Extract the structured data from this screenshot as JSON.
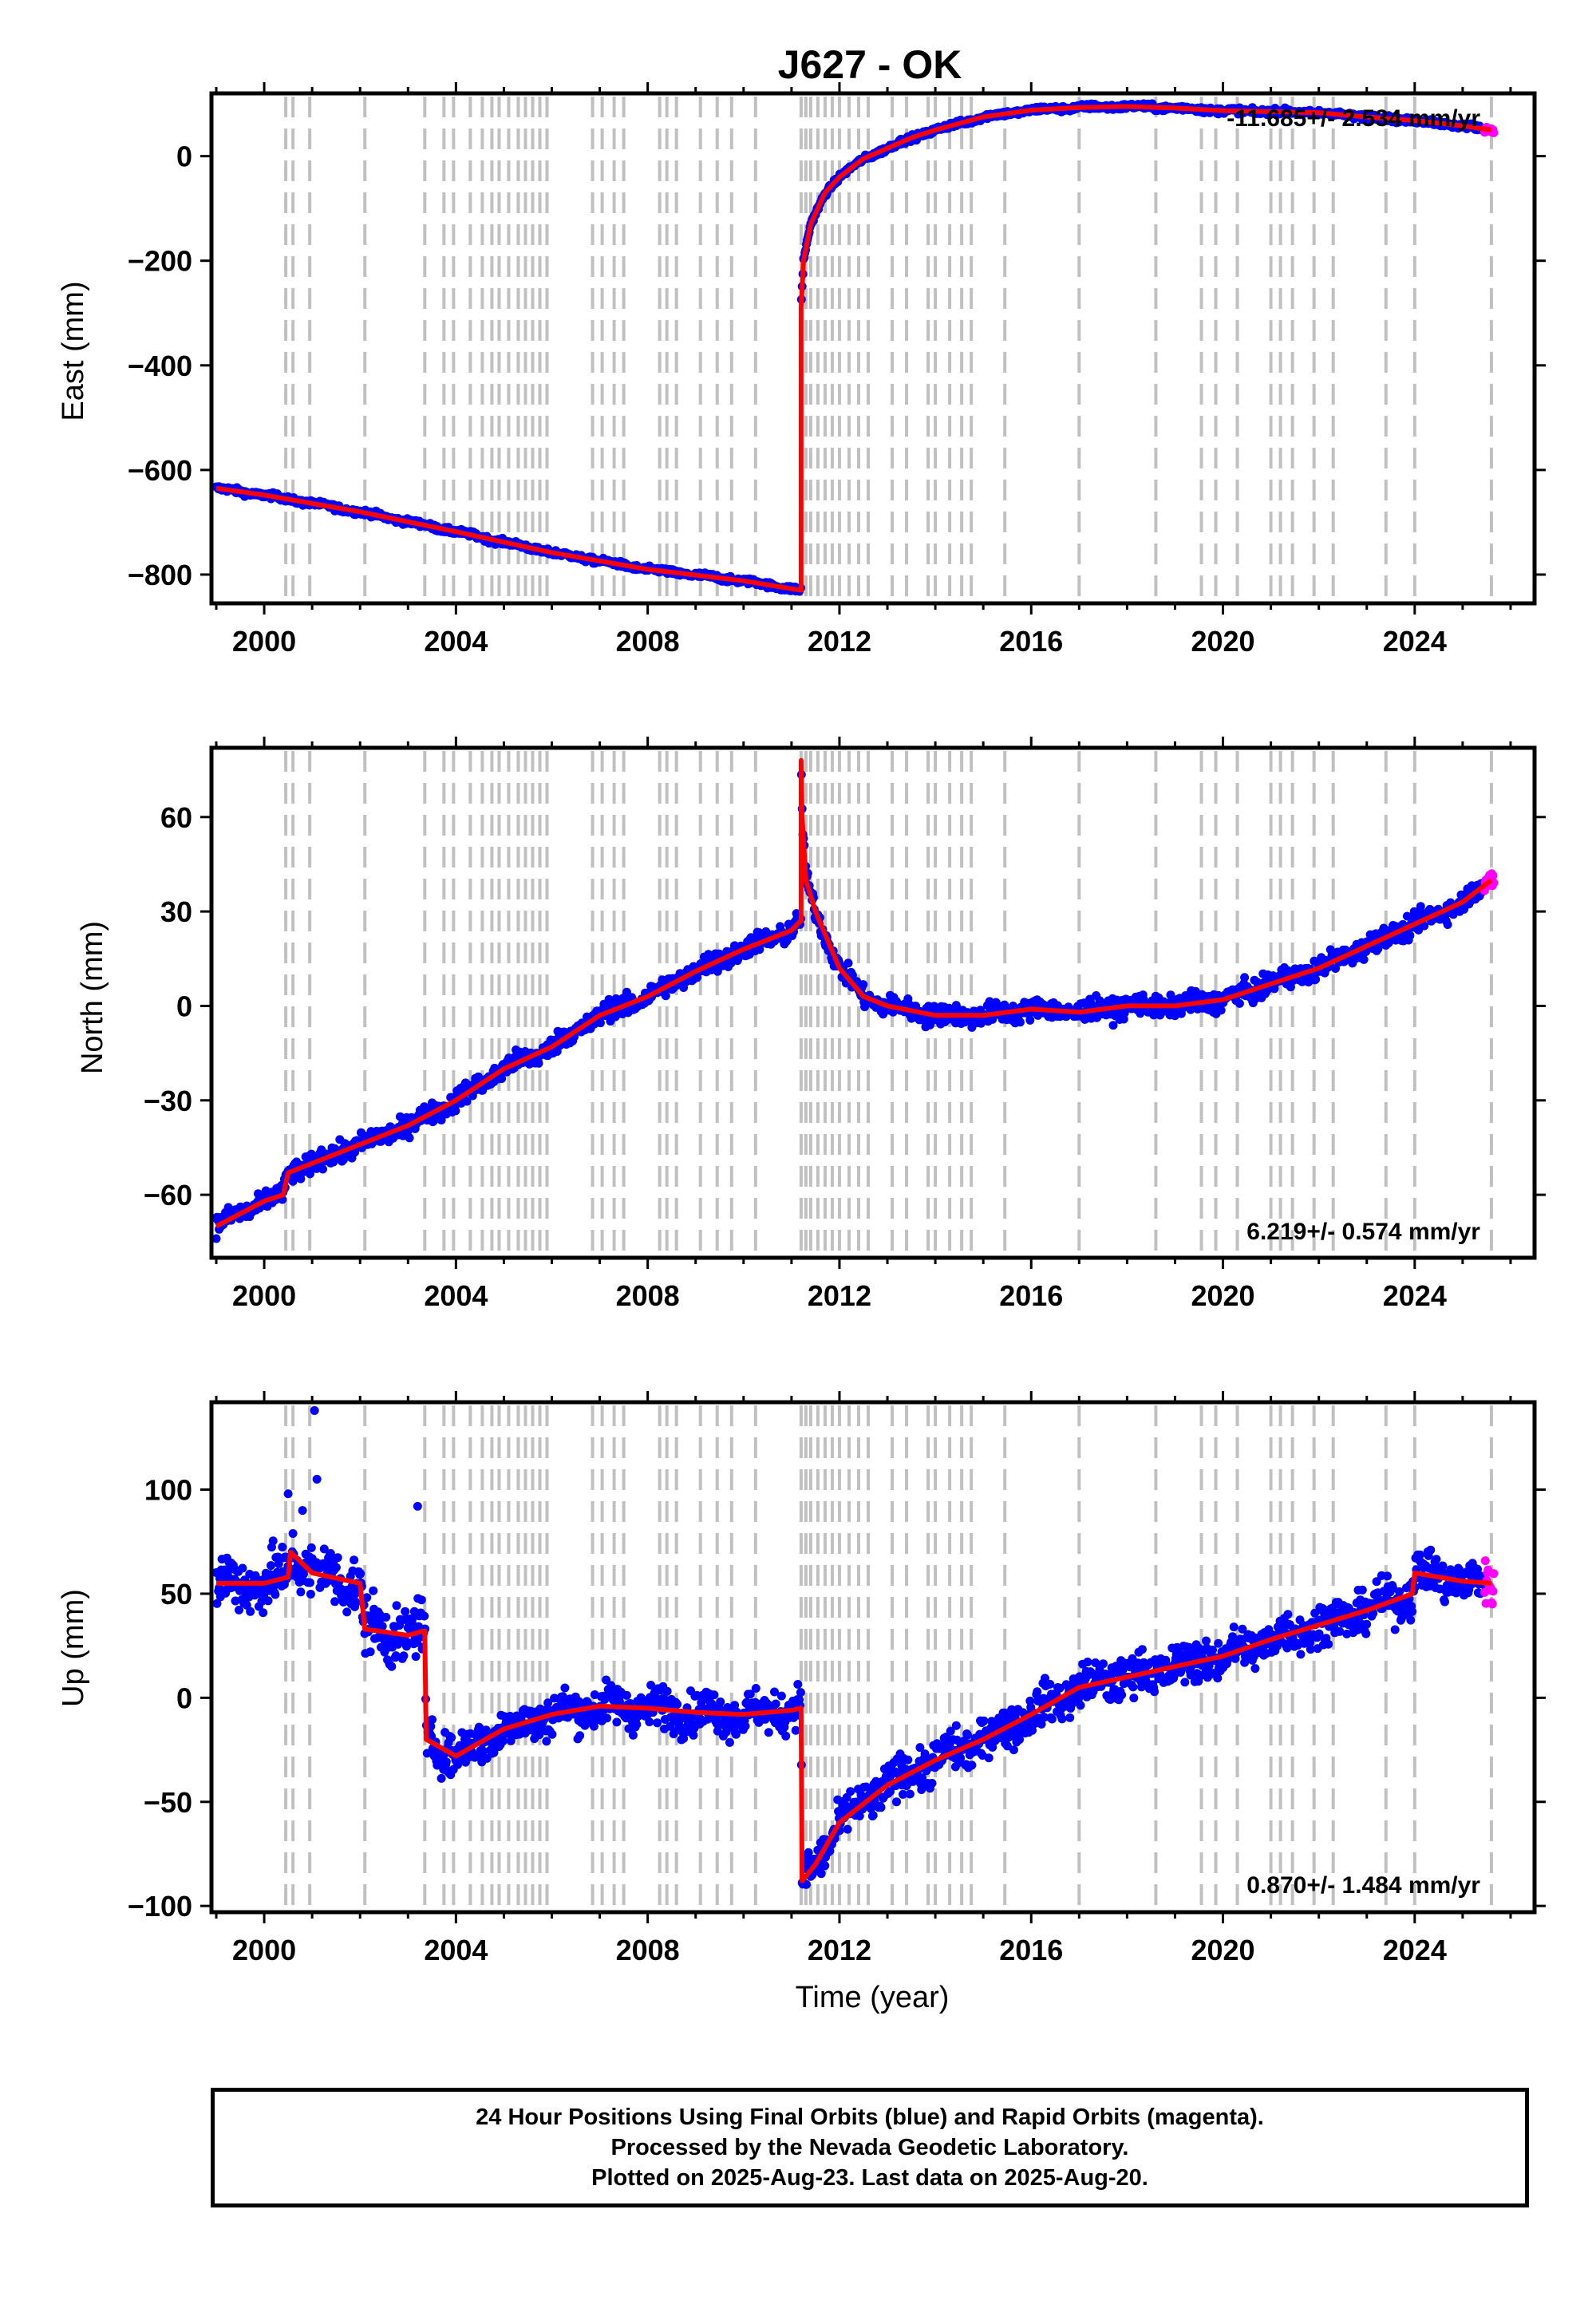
{
  "chart_data": [
    {
      "type": "scatter",
      "title": "J627 - OK",
      "ylabel": "East (mm)",
      "xlim": [
        1998.9,
        2026.5
      ],
      "ylim": [
        -855,
        120
      ],
      "xticks": [
        2000,
        2004,
        2008,
        2012,
        2016,
        2020,
        2024
      ],
      "yticks": [
        -800,
        -600,
        -400,
        -200,
        0
      ],
      "tick_labels": {
        "x": [
          "2000",
          "2004",
          "2008",
          "2012",
          "2016",
          "2020",
          "2024"
        ],
        "y": [
          "−800",
          "−600",
          "−400",
          "−200",
          "0"
        ]
      },
      "rate_label": "-11.685+/- 2.534 mm/yr",
      "trend": [
        [
          1999.0,
          -635
        ],
        [
          2000.0,
          -648
        ],
        [
          2002.0,
          -680
        ],
        [
          2004.0,
          -718
        ],
        [
          2006.0,
          -758
        ],
        [
          2008.0,
          -790
        ],
        [
          2010.0,
          -812
        ],
        [
          2011.19,
          -830
        ],
        [
          2011.2,
          -830
        ],
        [
          2011.2,
          -290
        ],
        [
          2011.25,
          -200
        ],
        [
          2011.4,
          -130
        ],
        [
          2011.7,
          -70
        ],
        [
          2012.0,
          -40
        ],
        [
          2012.5,
          -5
        ],
        [
          2013.0,
          15
        ],
        [
          2013.5,
          35
        ],
        [
          2014.0,
          50
        ],
        [
          2015.0,
          75
        ],
        [
          2016.0,
          88
        ],
        [
          2017.0,
          93
        ],
        [
          2018.0,
          95
        ],
        [
          2019.0,
          92
        ],
        [
          2020.0,
          87
        ],
        [
          2021.0,
          85
        ],
        [
          2022.0,
          83
        ],
        [
          2023.0,
          75
        ],
        [
          2024.0,
          68
        ],
        [
          2025.0,
          58
        ],
        [
          2025.6,
          50
        ]
      ],
      "noise": 4,
      "rapid_range": [
        2025.45,
        2025.65
      ],
      "steps": []
    },
    {
      "type": "scatter",
      "title": "",
      "ylabel": "North (mm)",
      "xlim": [
        1998.9,
        2026.5
      ],
      "ylim": [
        -80,
        82
      ],
      "xticks": [
        2000,
        2004,
        2008,
        2012,
        2016,
        2020,
        2024
      ],
      "yticks": [
        -60,
        -30,
        0,
        30,
        60
      ],
      "tick_labels": {
        "x": [
          "2000",
          "2004",
          "2008",
          "2012",
          "2016",
          "2020",
          "2024"
        ],
        "y": [
          "−60",
          "−30",
          "0",
          "30",
          "60"
        ]
      },
      "rate_label": "6.219+/- 0.574 mm/yr",
      "trend": [
        [
          1999.0,
          -70
        ],
        [
          1999.5,
          -66
        ],
        [
          2000.0,
          -62
        ],
        [
          2000.4,
          -60
        ],
        [
          2000.5,
          -53
        ],
        [
          2001.0,
          -50
        ],
        [
          2002.0,
          -44
        ],
        [
          2003.0,
          -38
        ],
        [
          2004.0,
          -30
        ],
        [
          2005.0,
          -20
        ],
        [
          2006.0,
          -13
        ],
        [
          2007.0,
          -3
        ],
        [
          2008.0,
          3
        ],
        [
          2009.0,
          11
        ],
        [
          2010.0,
          18
        ],
        [
          2011.0,
          24
        ],
        [
          2011.19,
          27
        ],
        [
          2011.2,
          27
        ],
        [
          2011.2,
          78
        ],
        [
          2011.22,
          60
        ],
        [
          2011.3,
          40
        ],
        [
          2011.5,
          30
        ],
        [
          2012.0,
          12
        ],
        [
          2012.5,
          3
        ],
        [
          2013.0,
          0
        ],
        [
          2014.0,
          -3
        ],
        [
          2015.0,
          -3
        ],
        [
          2016.0,
          -1
        ],
        [
          2017.0,
          -2
        ],
        [
          2018.0,
          0
        ],
        [
          2019.0,
          0
        ],
        [
          2020.0,
          2
        ],
        [
          2021.0,
          7
        ],
        [
          2022.0,
          12
        ],
        [
          2023.0,
          19
        ],
        [
          2024.0,
          26
        ],
        [
          2025.0,
          33
        ],
        [
          2025.6,
          40
        ]
      ],
      "noise": 2.3,
      "rapid_range": [
        2025.45,
        2025.65
      ],
      "steps": []
    },
    {
      "type": "scatter",
      "title": "",
      "xlabel": "Time (year)",
      "ylabel": "Up (mm)",
      "xlim": [
        1998.9,
        2026.5
      ],
      "ylim": [
        -103,
        142
      ],
      "xticks": [
        2000,
        2004,
        2008,
        2012,
        2016,
        2020,
        2024
      ],
      "yticks": [
        -100,
        -50,
        0,
        50,
        100
      ],
      "tick_labels": {
        "x": [
          "2000",
          "2004",
          "2008",
          "2012",
          "2016",
          "2020",
          "2024"
        ],
        "y": [
          "−100",
          "−50",
          "0",
          "50",
          "100"
        ]
      },
      "rate_label": "0.870+/- 1.484 mm/yr",
      "trend": [
        [
          1999.0,
          55
        ],
        [
          2000.0,
          55
        ],
        [
          2000.5,
          58
        ],
        [
          2000.55,
          70
        ],
        [
          2001.0,
          60
        ],
        [
          2002.0,
          55
        ],
        [
          2002.1,
          33
        ],
        [
          2003.0,
          30
        ],
        [
          2003.3,
          32
        ],
        [
          2003.35,
          32
        ],
        [
          2003.38,
          -20
        ],
        [
          2004.0,
          -28
        ],
        [
          2005.0,
          -15
        ],
        [
          2006.0,
          -8
        ],
        [
          2007.0,
          -4
        ],
        [
          2008.0,
          -5
        ],
        [
          2009.0,
          -7
        ],
        [
          2010.0,
          -8
        ],
        [
          2011.0,
          -6
        ],
        [
          2011.19,
          -5
        ],
        [
          2011.2,
          -5
        ],
        [
          2011.22,
          -88
        ],
        [
          2011.5,
          -80
        ],
        [
          2012.0,
          -60
        ],
        [
          2013.0,
          -42
        ],
        [
          2014.0,
          -30
        ],
        [
          2015.0,
          -20
        ],
        [
          2016.0,
          -8
        ],
        [
          2017.0,
          5
        ],
        [
          2018.0,
          10
        ],
        [
          2019.0,
          15
        ],
        [
          2020.0,
          20
        ],
        [
          2021.0,
          28
        ],
        [
          2022.0,
          35
        ],
        [
          2023.0,
          42
        ],
        [
          2023.95,
          50
        ],
        [
          2024.0,
          60
        ],
        [
          2025.0,
          56
        ],
        [
          2025.6,
          55
        ]
      ],
      "noise": 7,
      "rapid_range": [
        2025.45,
        2025.65
      ],
      "steps": []
    }
  ],
  "discontinuities": [
    2000.45,
    2000.6,
    2000.95,
    2002.1,
    2003.35,
    2003.75,
    2003.95,
    2004.3,
    2004.55,
    2004.75,
    2004.9,
    2005.1,
    2005.3,
    2005.45,
    2005.6,
    2005.75,
    2005.9,
    2006.85,
    2007.05,
    2007.3,
    2007.5,
    2008.25,
    2008.4,
    2008.6,
    2009.1,
    2009.45,
    2009.75,
    2010.25,
    2011.2,
    2011.3,
    2011.4,
    2011.55,
    2011.7,
    2011.85,
    2012.0,
    2012.2,
    2012.4,
    2012.6,
    2013.1,
    2013.4,
    2013.85,
    2014.0,
    2014.3,
    2014.55,
    2014.75,
    2015.45,
    2017.0,
    2018.6,
    2019.55,
    2019.85,
    2020.3,
    2021.0,
    2021.2,
    2021.45,
    2021.9,
    2022.3,
    2023.4,
    2024.0,
    2025.6
  ],
  "colors": {
    "final": "#0000ff",
    "rapid": "#ff00ff",
    "model": "#ff0000",
    "discontinuity": "#c0c0c0"
  },
  "footer": {
    "line1": "24 Hour Positions Using Final Orbits (blue) and Rapid Orbits (magenta).",
    "line2": "Processed by the Nevada Geodetic Laboratory.",
    "line3": "Plotted on 2025-Aug-23. Last data on 2025-Aug-20."
  }
}
